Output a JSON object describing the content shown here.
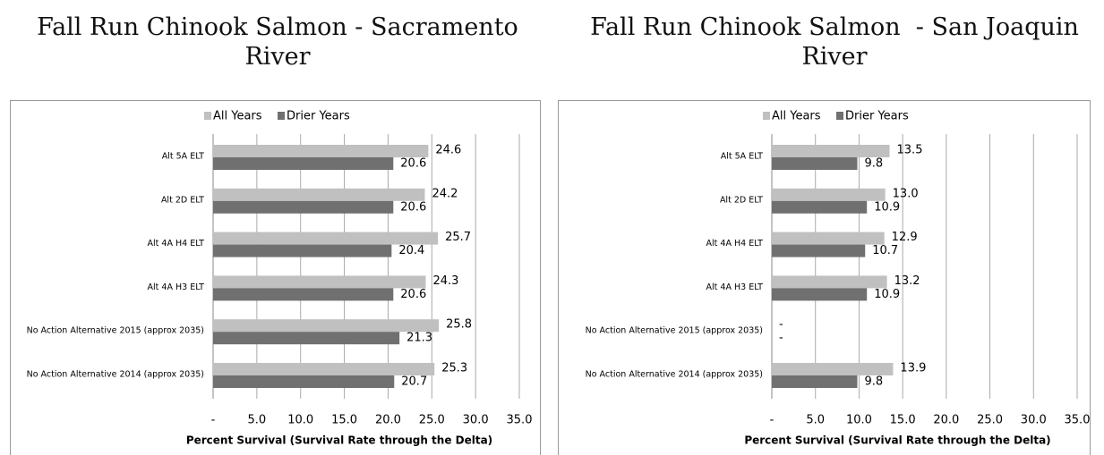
{
  "chart_data": [
    {
      "type": "bar",
      "orientation": "horizontal",
      "title": "Fall Run Chinook Salmon - Sacramento River",
      "categories": [
        "Alt 5A ELT",
        "Alt 2D ELT",
        "Alt 4A H4 ELT",
        "Alt 4A H3 ELT",
        "No Action Alternative 2015 (approx 2035)",
        "No Action Alternative 2014 (approx 2035)"
      ],
      "series": [
        {
          "name": "All Years",
          "color": "#c0c0c0",
          "values": [
            24.6,
            24.2,
            25.7,
            24.3,
            25.8,
            25.3
          ]
        },
        {
          "name": "Drier Years",
          "color": "#707070",
          "values": [
            20.6,
            20.6,
            20.4,
            20.6,
            21.3,
            20.7
          ]
        }
      ],
      "xlabel": "Percent Survival (Survival Rate through the Delta)",
      "xlim": [
        0,
        35
      ],
      "xticks": [
        {
          "value": 0,
          "label": "-"
        },
        {
          "value": 5,
          "label": "5.0"
        },
        {
          "value": 10,
          "label": "10.0"
        },
        {
          "value": 15,
          "label": "15.0"
        },
        {
          "value": 20,
          "label": "20.0"
        },
        {
          "value": 25,
          "label": "25.0"
        },
        {
          "value": 30,
          "label": "30.0"
        },
        {
          "value": 35,
          "label": "35.0"
        }
      ],
      "grid": true,
      "legend": "top"
    },
    {
      "type": "bar",
      "orientation": "horizontal",
      "title": "Fall Run Chinook Salmon  - San Joaquin River",
      "categories": [
        "Alt 5A ELT",
        "Alt 2D ELT",
        "Alt 4A H4 ELT",
        "Alt 4A H3 ELT",
        "No Action Alternative 2015 (approx 2035)",
        "No Action Alternative 2014 (approx 2035)"
      ],
      "series": [
        {
          "name": "All Years",
          "color": "#c0c0c0",
          "values": [
            13.5,
            13,
            12.9,
            13.2,
            null,
            13.9
          ],
          "value_labels": [
            "13.5",
            "13.0",
            "12.9",
            "13.2",
            "-",
            "13.9"
          ]
        },
        {
          "name": "Drier Years",
          "color": "#707070",
          "values": [
            9.8,
            10.9,
            10.7,
            10.9,
            null,
            9.8
          ],
          "value_labels": [
            "9.8",
            "10.9",
            "10.7",
            "10.9",
            "-",
            "9.8"
          ]
        }
      ],
      "xlabel": "Percent Survival (Survival Rate through the Delta)",
      "xlim": [
        0,
        35
      ],
      "xticks": [
        {
          "value": 0,
          "label": "-"
        },
        {
          "value": 5,
          "label": "5.0"
        },
        {
          "value": 10,
          "label": "10.0"
        },
        {
          "value": 15,
          "label": "15.0"
        },
        {
          "value": 20,
          "label": "20.0"
        },
        {
          "value": 25,
          "label": "25.0"
        },
        {
          "value": 30,
          "label": "30.0"
        },
        {
          "value": 35,
          "label": "35.0"
        }
      ],
      "grid": true,
      "legend": "top"
    }
  ]
}
